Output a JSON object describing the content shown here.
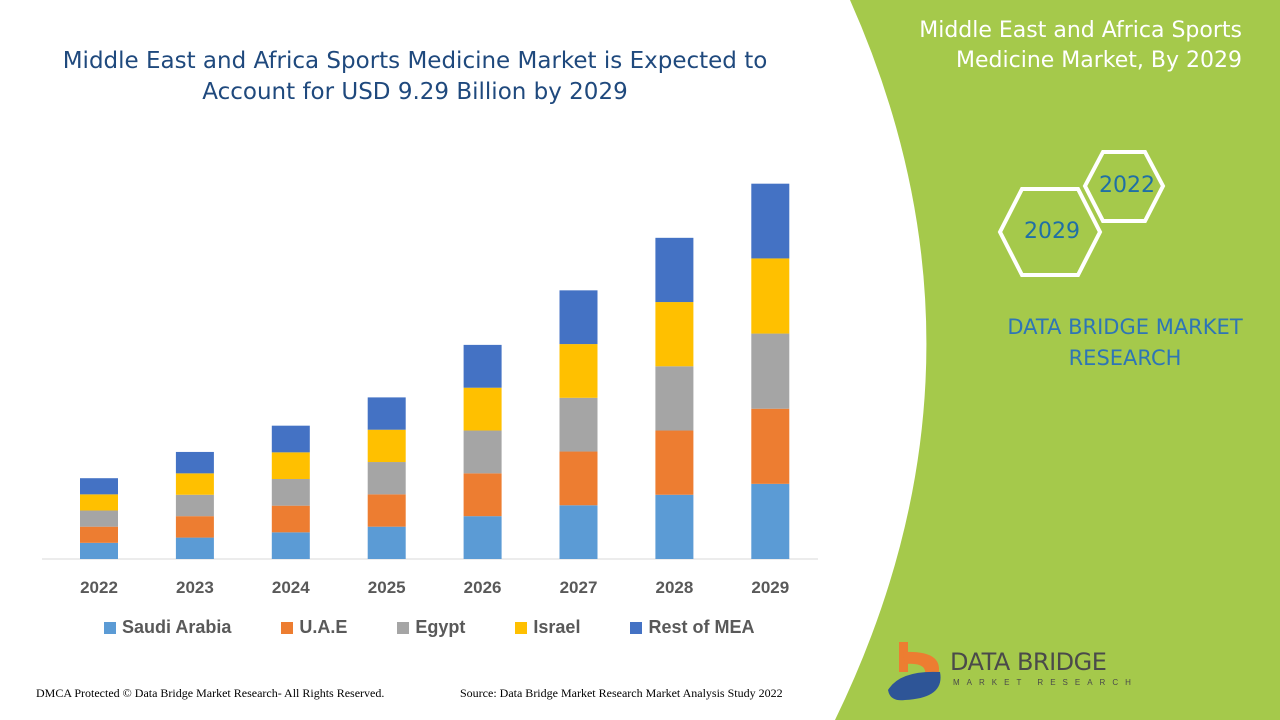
{
  "title": "Middle East and Africa Sports Medicine Market is Expected to Account for USD 9.29 Billion by 2029",
  "side_title": "Middle East and Africa Sports Medicine Market, By 2029",
  "hex_years": [
    "2022",
    "2029"
  ],
  "brand_text": "DATA BRIDGE MARKET RESEARCH",
  "logo": {
    "name": "DATA BRIDGE",
    "sub": "MARKET RESEARCH"
  },
  "footer": {
    "left": "DMCA Protected © Data Bridge Market Research- All Rights Reserved.",
    "right": "Source: Data Bridge Market Research Market Analysis Study 2022"
  },
  "colors": {
    "panel": "#a5c94b",
    "title": "#1f497d"
  },
  "chart_data": {
    "type": "bar",
    "stacked": true,
    "categories": [
      "2022",
      "2023",
      "2024",
      "2025",
      "2026",
      "2027",
      "2028",
      "2029"
    ],
    "legend_position": "bottom",
    "grid": false,
    "series": [
      {
        "name": "Saudi Arabia",
        "color": "#5b9bd5",
        "values": [
          0.4,
          0.53,
          0.66,
          0.8,
          1.06,
          1.33,
          1.59,
          1.86
        ]
      },
      {
        "name": "U.A.E",
        "color": "#ed7d31",
        "values": [
          0.4,
          0.53,
          0.66,
          0.8,
          1.06,
          1.33,
          1.59,
          1.86
        ]
      },
      {
        "name": "Egypt",
        "color": "#a5a5a5",
        "values": [
          0.4,
          0.53,
          0.66,
          0.8,
          1.06,
          1.33,
          1.59,
          1.86
        ]
      },
      {
        "name": "Israel",
        "color": "#ffc000",
        "values": [
          0.4,
          0.53,
          0.66,
          0.8,
          1.06,
          1.33,
          1.59,
          1.86
        ]
      },
      {
        "name": "Rest of MEA",
        "color": "#4472c4",
        "values": [
          0.4,
          0.53,
          0.66,
          0.8,
          1.06,
          1.33,
          1.59,
          1.85
        ]
      }
    ]
  }
}
